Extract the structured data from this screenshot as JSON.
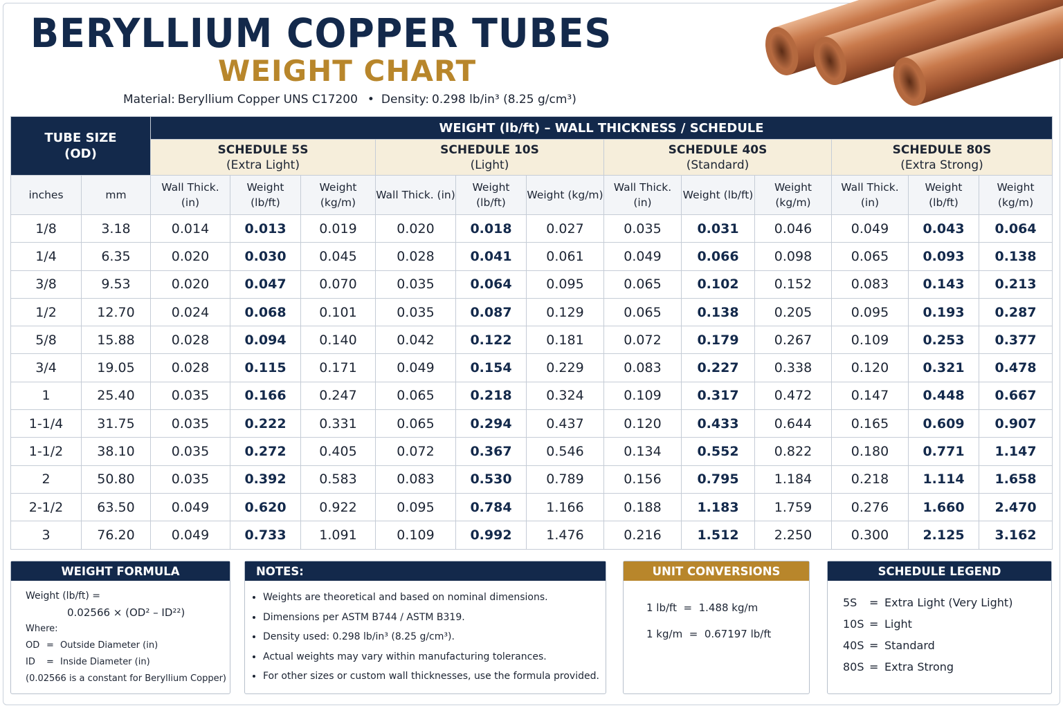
{
  "header": {
    "title": "BERYLLIUM COPPER TUBES",
    "subtitle": "WEIGHT CHART",
    "material_label": "Material:",
    "material": "Beryllium Copper UNS C17200",
    "separator": "•",
    "density_label": "Density:",
    "density": "0.298 lb/in³ (8.25 g/cm³)"
  },
  "table": {
    "size_header": "TUBE SIZE (OD)",
    "group_header": "WEIGHT (lb/ft) – WALL THICKNESS / SCHEDULE",
    "schedules": [
      {
        "name": "SCHEDULE 5S",
        "description": "(Extra Light)"
      },
      {
        "name": "SCHEDULE 10S",
        "description": "(Light)"
      },
      {
        "name": "SCHEDULE 40S",
        "description": "(Standard)"
      },
      {
        "name": "SCHEDULE 80S",
        "description": "(Extra Strong)"
      }
    ],
    "columns": [
      "inches",
      "mm",
      "Wall Thick. (in)",
      "Weight (lb/ft)",
      "Weight (kg/m)",
      "Wall Thick. (in)",
      "Weight (lb/ft)",
      "Weight (kg/m)",
      "Wall Thick. (in)",
      "Weight (lb/ft)",
      "Weight (kg/m)",
      "Wall Thick. (in)",
      "Weight (lb/ft)",
      "Weight (kg/m)"
    ],
    "rows": [
      [
        "1/8",
        "3.18",
        "0.014",
        "0.013",
        "0.019",
        "0.020",
        "0.018",
        "0.027",
        "0.035",
        "0.031",
        "0.046",
        "0.049",
        "0.043",
        "0.064"
      ],
      [
        "1/4",
        "6.35",
        "0.020",
        "0.030",
        "0.045",
        "0.028",
        "0.041",
        "0.061",
        "0.049",
        "0.066",
        "0.098",
        "0.065",
        "0.093",
        "0.138"
      ],
      [
        "3/8",
        "9.53",
        "0.020",
        "0.047",
        "0.070",
        "0.035",
        "0.064",
        "0.095",
        "0.065",
        "0.102",
        "0.152",
        "0.083",
        "0.143",
        "0.213"
      ],
      [
        "1/2",
        "12.70",
        "0.024",
        "0.068",
        "0.101",
        "0.035",
        "0.087",
        "0.129",
        "0.065",
        "0.138",
        "0.205",
        "0.095",
        "0.193",
        "0.287"
      ],
      [
        "5/8",
        "15.88",
        "0.028",
        "0.094",
        "0.140",
        "0.042",
        "0.122",
        "0.181",
        "0.072",
        "0.179",
        "0.267",
        "0.109",
        "0.253",
        "0.377"
      ],
      [
        "3/4",
        "19.05",
        "0.028",
        "0.115",
        "0.171",
        "0.049",
        "0.154",
        "0.229",
        "0.083",
        "0.227",
        "0.338",
        "0.120",
        "0.321",
        "0.478"
      ],
      [
        "1",
        "25.40",
        "0.035",
        "0.166",
        "0.247",
        "0.065",
        "0.218",
        "0.324",
        "0.109",
        "0.317",
        "0.472",
        "0.147",
        "0.448",
        "0.667"
      ],
      [
        "1-1/4",
        "31.75",
        "0.035",
        "0.222",
        "0.331",
        "0.065",
        "0.294",
        "0.437",
        "0.120",
        "0.433",
        "0.644",
        "0.165",
        "0.609",
        "0.907"
      ],
      [
        "1-1/2",
        "38.10",
        "0.035",
        "0.272",
        "0.405",
        "0.072",
        "0.367",
        "0.546",
        "0.134",
        "0.552",
        "0.822",
        "0.180",
        "0.771",
        "1.147"
      ],
      [
        "2",
        "50.80",
        "0.035",
        "0.392",
        "0.583",
        "0.083",
        "0.530",
        "0.789",
        "0.156",
        "0.795",
        "1.184",
        "0.218",
        "1.114",
        "1.658"
      ],
      [
        "2-1/2",
        "63.50",
        "0.049",
        "0.620",
        "0.922",
        "0.095",
        "0.784",
        "1.166",
        "0.188",
        "1.183",
        "1.759",
        "0.276",
        "1.660",
        "2.470"
      ],
      [
        "3",
        "76.20",
        "0.049",
        "0.733",
        "1.091",
        "0.109",
        "0.992",
        "1.476",
        "0.216",
        "1.512",
        "2.250",
        "0.300",
        "2.125",
        "3.162"
      ]
    ]
  },
  "formula": {
    "title": "WEIGHT FORMULA",
    "line1": "Weight (lb/ft) =",
    "line2": "0.02566 × (OD² – ID²²)",
    "where": "Where:",
    "definitions": [
      {
        "symbol": "OD",
        "equals": "=",
        "meaning": "Outside Diameter (in)"
      },
      {
        "symbol": "ID",
        "equals": "=",
        "meaning": "Inside Diameter (in)"
      }
    ],
    "footnote": "(0.02566 is a constant for Beryllium Copper)"
  },
  "notes": {
    "title": "NOTES:",
    "items": [
      "Weights are theoretical and based on nominal dimensions.",
      "Dimensions per ASTM B744 / ASTM B319.",
      "Density used: 0.298 lb/in³ (8.25 g/cm³).",
      "Actual weights may vary within manufacturing tolerances.",
      "For other sizes or custom wall thicknesses, use the formula provided."
    ]
  },
  "conversions": {
    "title": "UNIT CONVERSIONS",
    "items": [
      "1 lb/ft  =  1.488 kg/m",
      "1 kg/m  =  0.67197 lb/ft"
    ]
  },
  "legend": {
    "title": "SCHEDULE LEGEND",
    "items": [
      {
        "code": "5S",
        "equals": "=",
        "meaning": "Extra Light (Very Light)"
      },
      {
        "code": "10S",
        "equals": "=",
        "meaning": "Light"
      },
      {
        "code": "40S",
        "equals": "=",
        "meaning": "Standard"
      },
      {
        "code": "80S",
        "equals": "=",
        "meaning": "Extra Strong"
      }
    ]
  }
}
